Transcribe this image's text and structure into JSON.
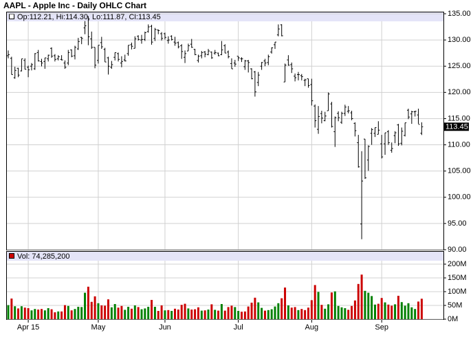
{
  "chart_data": {
    "type": "ohlc",
    "title": "AAPL - Apple Inc - Daily OHLC Chart",
    "legend_text": "Op:112.21, Hi:114.30, Lo:111.87, Cl:113.45",
    "volume_text": "Vol: 74,285,200",
    "color": "#000000",
    "up_color": "#008000",
    "down_color": "#cc0000",
    "grid": true,
    "categories": [
      null,
      null,
      null,
      null,
      null,
      null,
      "Apr 15",
      null,
      null,
      null,
      null,
      null,
      null,
      null,
      null,
      null,
      null,
      null,
      null,
      null,
      null,
      null,
      null,
      null,
      null,
      null,
      null,
      "May",
      null,
      null,
      null,
      null,
      null,
      null,
      null,
      null,
      null,
      null,
      null,
      null,
      null,
      null,
      null,
      null,
      null,
      null,
      null,
      "Jun",
      null,
      null,
      null,
      null,
      null,
      null,
      null,
      null,
      null,
      null,
      null,
      null,
      null,
      null,
      null,
      null,
      null,
      null,
      null,
      null,
      null,
      "Jul",
      null,
      null,
      null,
      null,
      null,
      null,
      null,
      null,
      null,
      null,
      null,
      null,
      null,
      null,
      null,
      null,
      null,
      null,
      null,
      null,
      null,
      "Aug",
      null,
      null,
      null,
      null,
      null,
      null,
      null,
      null,
      null,
      null,
      null,
      null,
      null,
      null,
      null,
      null,
      null,
      null,
      null,
      null,
      "Sep",
      null,
      null,
      null,
      null,
      null,
      null,
      null,
      null,
      null,
      null,
      null,
      null
    ],
    "open": [
      127.0,
      126.5,
      122.8,
      124.6,
      124.1,
      126.1,
      124.8,
      125.0,
      124.5,
      127.6,
      125.9,
      125.9,
      126.4,
      128.4,
      127.0,
      126.4,
      126.3,
      125.6,
      125.6,
      128.1,
      126.99,
      128.3,
      130.5,
      132.3,
      134.5,
      130.2,
      128.6,
      126.1,
      129.5,
      128.2,
      126.6,
      124.8,
      126.7,
      127.4,
      125.6,
      126.2,
      127.4,
      129.1,
      128.4,
      130.7,
      130.0,
      130.1,
      131.6,
      132.6,
      130.3,
      131.9,
      131.2,
      131.2,
      129.9,
      130.7,
      129.6,
      129.5,
      128.9,
      126.7,
      127.9,
      129.2,
      128.2,
      126.1,
      127.0,
      127.7,
      127.2,
      127.7,
      127.5,
      127.5,
      127.2,
      128.9,
      127.7,
      125.5,
      125.6,
      126.9,
      126.4,
      124.9,
      126.0,
      124.5,
      123.9,
      121.9,
      125.0,
      126.0,
      125.7,
      127.7,
      129.1,
      130.97,
      132.9,
      121.99,
      126.2,
      125.3,
      123.1,
      123.4,
      123.2,
      122.3,
      122.6,
      121.5,
      117.4,
      112.95,
      115.97,
      114.6,
      116.5,
      117.8,
      112.5,
      116.0,
      114.3,
      116.0,
      116.4,
      116.1,
      114.1,
      110.4,
      94.9,
      111.1,
      107.1,
      112.2,
      112.2,
      112.0,
      110.2,
      110.2,
      112.5,
      108.97,
      111.75,
      113.8,
      110.3,
      111.8,
      116.6,
      115.9,
      116.3,
      115.7,
      112.21
    ],
    "high": [
      128.0,
      126.8,
      124.9,
      124.7,
      126.4,
      126.5,
      125.1,
      125.6,
      127.5,
      128.1,
      126.4,
      126.6,
      127.2,
      128.6,
      127.3,
      127.1,
      127.1,
      126.1,
      128.1,
      128.2,
      128.9,
      130.4,
      130.6,
      133.6,
      134.5,
      131.6,
      128.6,
      129.0,
      130.6,
      128.5,
      126.8,
      126.0,
      127.6,
      127.6,
      126.9,
      127.2,
      129.0,
      129.5,
      130.7,
      130.9,
      130.98,
      131.6,
      132.97,
      132.9,
      132.3,
      132.0,
      131.5,
      131.4,
      130.7,
      130.9,
      130.6,
      129.7,
      129.2,
      128.0,
      129.3,
      130.2,
      128.3,
      127.2,
      127.9,
      127.9,
      128.3,
      127.8,
      128.1,
      127.6,
      129.8,
      129.2,
      127.99,
      126.5,
      126.2,
      126.9,
      126.7,
      126.2,
      126.2,
      124.6,
      124.1,
      123.9,
      125.8,
      126.4,
      127.2,
      128.6,
      129.6,
      132.97,
      133.0,
      125.5,
      127.1,
      125.7,
      123.6,
      123.9,
      123.5,
      122.6,
      122.6,
      122.6,
      117.7,
      117.4,
      116.5,
      116.3,
      119.99,
      118.2,
      115.4,
      116.4,
      116.3,
      117.65,
      117.4,
      116.5,
      114.3,
      111.9,
      108.8,
      111.1,
      109.9,
      113.2,
      113.3,
      114.5,
      111.9,
      112.3,
      112.8,
      110.45,
      112.6,
      114.0,
      113.3,
      114.2,
      116.9,
      116.5,
      116.5,
      116.9,
      114.3
    ],
    "low": [
      126.5,
      123.4,
      122.6,
      122.9,
      124.0,
      124.4,
      122.9,
      124.2,
      124.3,
      125.9,
      124.97,
      124.5,
      125.9,
      126.6,
      125.9,
      126.1,
      126.1,
      124.5,
      125.2,
      126.7,
      126.3,
      128.1,
      129.2,
      131.1,
      129.0,
      128.3,
      124.6,
      125.5,
      128.3,
      125.8,
      123.4,
      124.5,
      126.1,
      125.9,
      124.8,
      125.9,
      127.0,
      128.2,
      128.4,
      129.9,
      129.3,
      129.8,
      131.4,
      129.1,
      129.8,
      131.1,
      129.9,
      130.1,
      129.3,
      129.9,
      128.9,
      128.4,
      126.4,
      125.6,
      127.9,
      128.5,
      127.1,
      125.7,
      126.5,
      126.7,
      127.1,
      126.4,
      127.2,
      126.9,
      127.1,
      127.5,
      126.5,
      124.5,
      124.9,
      125.99,
      125.8,
      124.3,
      123.8,
      122.5,
      119.2,
      121.2,
      124.3,
      125.0,
      125.2,
      127.4,
      128.3,
      130.7,
      130.7,
      121.99,
      125.1,
      123.7,
      122.1,
      122.3,
      122.3,
      121.2,
      120.9,
      117.5,
      113.3,
      112.1,
      114.1,
      114.5,
      116.5,
      113.3,
      109.6,
      114.5,
      114.0,
      115.5,
      116.0,
      114.7,
      111.6,
      105.65,
      92.0,
      103.5,
      105.05,
      110.0,
      111.5,
      112.0,
      107.4,
      108.1,
      110.0,
      108.5,
      110.3,
      109.8,
      109.9,
      111.6,
      114.9,
      114.0,
      115.4,
      114.0,
      111.87
    ],
    "close": [
      127.2,
      123.4,
      124.2,
      123.3,
      126.4,
      124.4,
      124.3,
      125.3,
      127.4,
      126.0,
      125.6,
      126.6,
      127.1,
      126.9,
      126.3,
      126.8,
      126.2,
      124.8,
      127.6,
      126.9,
      128.6,
      129.7,
      130.3,
      132.7,
      130.6,
      128.6,
      125.2,
      129.0,
      128.7,
      125.8,
      125.0,
      125.3,
      127.6,
      126.3,
      125.9,
      126.0,
      129.0,
      128.8,
      130.2,
      130.1,
      130.1,
      131.4,
      132.5,
      129.6,
      132.0,
      131.8,
      130.3,
      130.5,
      130.0,
      130.1,
      129.4,
      128.7,
      127.8,
      127.4,
      128.9,
      128.6,
      127.2,
      126.9,
      127.6,
      127.3,
      127.9,
      126.6,
      127.6,
      127.0,
      128.1,
      127.5,
      126.8,
      124.5,
      125.4,
      126.6,
      126.4,
      126.0,
      125.7,
      122.6,
      120.1,
      123.3,
      125.7,
      125.6,
      126.8,
      128.5,
      129.6,
      132.1,
      130.8,
      125.2,
      125.2,
      124.5,
      122.8,
      123.4,
      123.0,
      122.4,
      121.3,
      118.4,
      114.6,
      115.4,
      115.1,
      115.5,
      119.7,
      113.5,
      115.2,
      115.2,
      116.0,
      117.2,
      116.5,
      115.0,
      112.7,
      105.8,
      103.1,
      103.7,
      109.7,
      112.9,
      113.3,
      112.8,
      107.7,
      112.3,
      110.4,
      109.3,
      112.3,
      110.2,
      112.6,
      114.2,
      115.3,
      116.3,
      116.4,
      113.9,
      113.45
    ],
    "volume": [
      51,
      75,
      47,
      39,
      47,
      42,
      40,
      32,
      37,
      35,
      37,
      32,
      40,
      36,
      25,
      28,
      28,
      51,
      48,
      32,
      37,
      45,
      44,
      96,
      118,
      63,
      83,
      58,
      50,
      49,
      72,
      43,
      55,
      42,
      48,
      34,
      45,
      38,
      50,
      44,
      36,
      39,
      45,
      70,
      45,
      30,
      50,
      32,
      33,
      30,
      38,
      35,
      52,
      56,
      39,
      35,
      36,
      43,
      31,
      32,
      35,
      54,
      34,
      31,
      55,
      31,
      44,
      49,
      44,
      30,
      27,
      28,
      46,
      60,
      78,
      61,
      41,
      31,
      33,
      36,
      46,
      58,
      76,
      115,
      50,
      42,
      44,
      33,
      37,
      33,
      42,
      69,
      124,
      99,
      52,
      38,
      54,
      97,
      101,
      48,
      43,
      40,
      34,
      48,
      68,
      128,
      162,
      103,
      96,
      84,
      53,
      56,
      77,
      61,
      53,
      49,
      54,
      85,
      62,
      49,
      58,
      43,
      37,
      64,
      74.2852
    ],
    "ylim": [
      90,
      135
    ],
    "yticks": [
      {
        "value": 90,
        "label": "90.00"
      },
      {
        "value": 95,
        "label": "95.00"
      },
      {
        "value": 100,
        "label": "100.00"
      },
      {
        "value": 105,
        "label": "105.00"
      },
      {
        "value": 110,
        "label": "110.00"
      },
      {
        "value": 115,
        "label": "115.00"
      },
      {
        "value": 120,
        "label": "120.00"
      },
      {
        "value": 125,
        "label": "125.00"
      },
      {
        "value": 130,
        "label": "130.00"
      },
      {
        "value": 135,
        "label": "135.00"
      }
    ],
    "volume_ylim": [
      0,
      200
    ],
    "volume_yticks": [
      {
        "value": 0,
        "label": "0M"
      },
      {
        "value": 50,
        "label": "50M"
      },
      {
        "value": 100,
        "label": "100M"
      },
      {
        "value": 150,
        "label": "150M"
      },
      {
        "value": 200,
        "label": "200M"
      }
    ]
  }
}
